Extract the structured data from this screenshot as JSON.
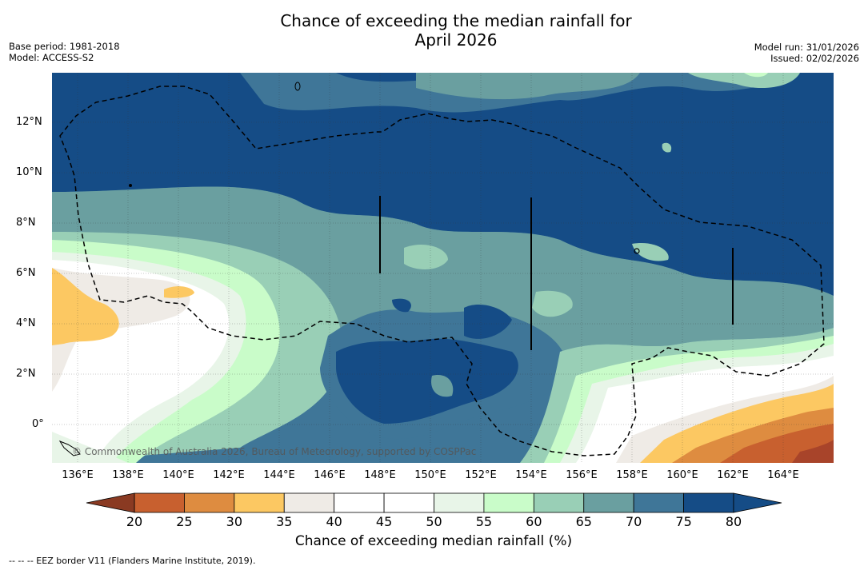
{
  "title": "Chance of exceeding the median rainfall for",
  "subtitle": "April 2026",
  "meta_left": [
    "Base period: 1981-2018",
    "Model: ACCESS-S2"
  ],
  "meta_right": [
    "Model run: 31/01/2026",
    "Issued: 02/02/2026"
  ],
  "copyright": "© Commonwealth of Australia 2026, Bureau of Meteorology, supported by COSPPac",
  "y_labels": [
    "12°N",
    "10°N",
    "8°N",
    "6°N",
    "4°N",
    "2°N",
    "0°"
  ],
  "x_labels": [
    "136°E",
    "138°E",
    "140°E",
    "142°E",
    "144°E",
    "146°E",
    "148°E",
    "150°E",
    "152°E",
    "154°E",
    "156°E",
    "158°E",
    "160°E",
    "162°E",
    "164°E"
  ],
  "colorbar": {
    "ticks": [
      "20",
      "25",
      "30",
      "35",
      "40",
      "45",
      "50",
      "55",
      "60",
      "65",
      "70",
      "75",
      "80"
    ],
    "colors": [
      "#a8442a",
      "#c8602f",
      "#de8c40",
      "#fcc862",
      "#efebe6",
      "#ffffff",
      "#ffffff",
      "#e8f5e8",
      "#c9fcc9",
      "#99cfb6",
      "#6a9fa0",
      "#3f7698",
      "#154c86"
    ],
    "title": "Chance of exceeding median rainfall (%)"
  },
  "footer": "--  --  -- EEZ border V11 (Flanders Marine Institute, 2019)."
}
